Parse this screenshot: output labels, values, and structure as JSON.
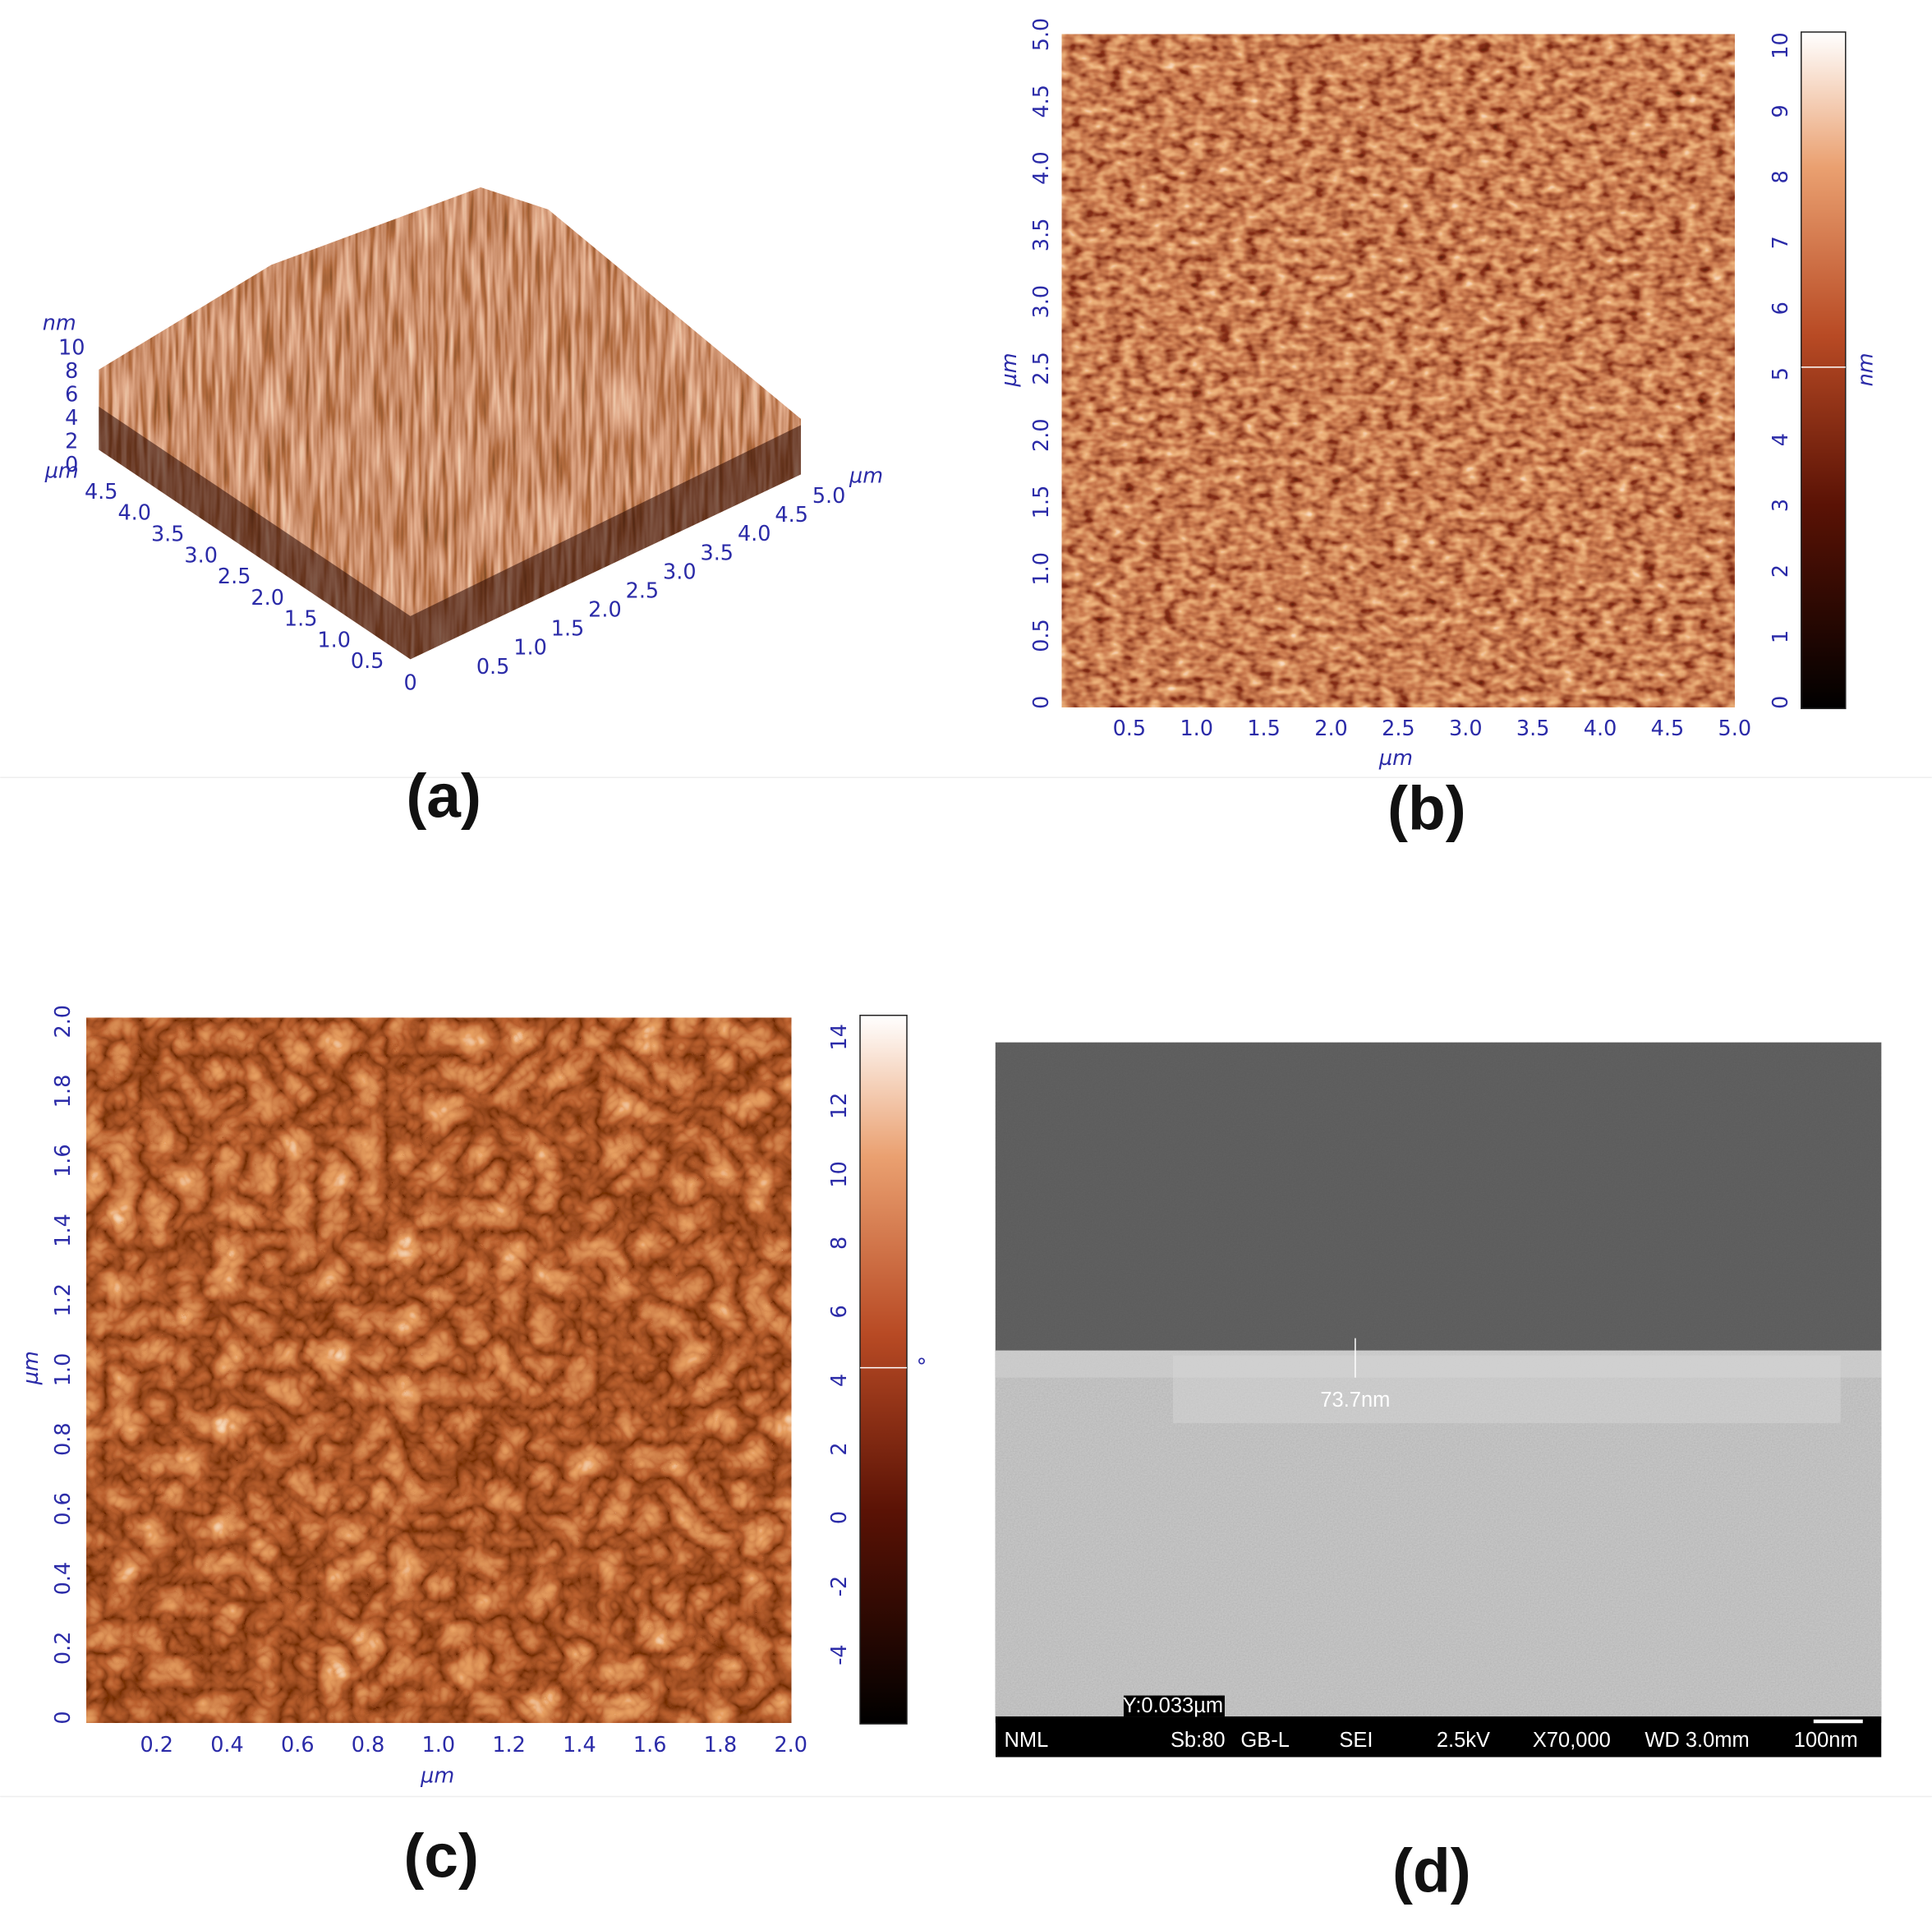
{
  "panel_a": {
    "label": "(a)",
    "z_unit": "nm",
    "z_ticks": [
      "10",
      "8",
      "6",
      "4",
      "2",
      "0"
    ],
    "y_unit": "µm",
    "y_ticks": [
      "4.5",
      "4.0",
      "3.5",
      "3.0",
      "2.5",
      "2.0",
      "1.5",
      "1.0",
      "0.5"
    ],
    "origin": "0",
    "x_ticks": [
      "0.5",
      "1.0",
      "1.5",
      "2.0",
      "2.5",
      "3.0",
      "3.5",
      "4.0",
      "4.5",
      "5.0"
    ],
    "x_unit": "µm"
  },
  "panel_b": {
    "label": "(b)",
    "x_ticks": [
      "0.5",
      "1.0",
      "1.5",
      "2.0",
      "2.5",
      "3.0",
      "3.5",
      "4.0",
      "4.5",
      "5.0"
    ],
    "x_unit": "µm",
    "y_ticks": [
      "0",
      "0.5",
      "1.0",
      "1.5",
      "2.0",
      "2.5",
      "3.0",
      "3.5",
      "4.0",
      "4.5",
      "5.0"
    ],
    "y_unit": "µm",
    "colorbar_ticks": [
      "0",
      "1",
      "2",
      "3",
      "4",
      "5",
      "6",
      "7",
      "8",
      "9",
      "10"
    ],
    "colorbar_unit": "nm"
  },
  "panel_c": {
    "label": "(c)",
    "x_ticks": [
      "0.2",
      "0.4",
      "0.6",
      "0.8",
      "1.0",
      "1.2",
      "1.4",
      "1.6",
      "1.8",
      "2.0"
    ],
    "x_unit": "µm",
    "y_ticks": [
      "0",
      "0.2",
      "0.4",
      "0.6",
      "0.8",
      "1.0",
      "1.2",
      "1.4",
      "1.6",
      "1.8",
      "2.0"
    ],
    "y_unit": "µm",
    "colorbar_ticks": [
      "-4",
      "-2",
      "0",
      "2",
      "4",
      "6",
      "8",
      "10",
      "12",
      "14"
    ],
    "colorbar_unit": "°"
  },
  "panel_d": {
    "label": "(d)",
    "thickness": "73.7nm",
    "marker": "Y:0.033µm",
    "info_bar": [
      "NML",
      "Sb:80",
      "GB-L",
      "SEI",
      "2.5kV",
      "X70,000",
      "WD 3.0mm",
      "100nm"
    ]
  }
}
